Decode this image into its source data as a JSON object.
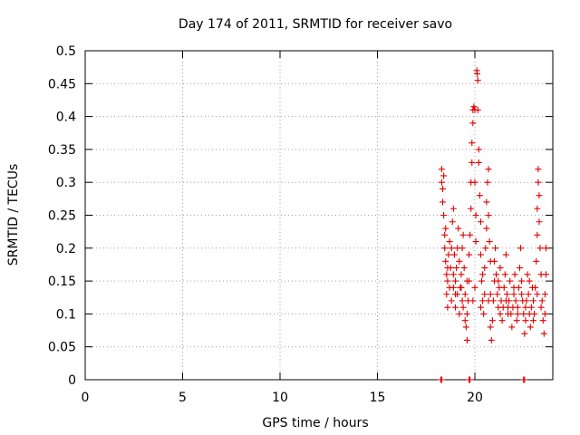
{
  "chart_data": {
    "type": "scatter",
    "title": "Day 174 of 2011, SRMTID for receiver savo",
    "xlabel": "GPS time / hours",
    "ylabel": "SRMTID / TECUs",
    "xlim": [
      0,
      24
    ],
    "ylim": [
      0,
      0.5
    ],
    "x_ticks": [
      0,
      5,
      10,
      15,
      20
    ],
    "x_tick_labels": [
      "0",
      "5",
      "10",
      "15",
      "20"
    ],
    "y_ticks": [
      0,
      0.05,
      0.1,
      0.15,
      0.2,
      0.25,
      0.3,
      0.35,
      0.4,
      0.45,
      0.5
    ],
    "y_tick_labels": [
      "0",
      "0.05",
      "0.1",
      "0.15",
      "0.2",
      "0.25",
      "0.3",
      "0.35",
      "0.4",
      "0.45",
      "0.5"
    ],
    "grid": true,
    "legend": "none",
    "marker": "+",
    "series": [
      {
        "name": "SRMTID",
        "color": "#e00000",
        "points": [
          [
            18.3,
            0.32
          ],
          [
            18.3,
            0.3
          ],
          [
            18.35,
            0.29
          ],
          [
            18.35,
            0.27
          ],
          [
            18.4,
            0.31
          ],
          [
            18.4,
            0.25
          ],
          [
            18.45,
            0.22
          ],
          [
            18.45,
            0.2
          ],
          [
            18.5,
            0.23
          ],
          [
            18.5,
            0.18
          ],
          [
            18.55,
            0.16
          ],
          [
            18.55,
            0.13
          ],
          [
            18.6,
            0.15
          ],
          [
            18.6,
            0.11
          ],
          [
            18.65,
            0.19
          ],
          [
            18.7,
            0.21
          ],
          [
            18.7,
            0.14
          ],
          [
            18.75,
            0.17
          ],
          [
            18.8,
            0.2
          ],
          [
            18.8,
            0.12
          ],
          [
            18.85,
            0.24
          ],
          [
            18.9,
            0.26
          ],
          [
            18.9,
            0.16
          ],
          [
            18.95,
            0.19
          ],
          [
            19.0,
            0.15
          ],
          [
            19.0,
            0.11
          ],
          [
            19.05,
            0.17
          ],
          [
            19.1,
            0.2
          ],
          [
            19.1,
            0.13
          ],
          [
            19.15,
            0.23
          ],
          [
            19.2,
            0.18
          ],
          [
            19.2,
            0.1
          ],
          [
            19.25,
            0.14
          ],
          [
            19.3,
            0.16
          ],
          [
            19.35,
            0.12
          ],
          [
            19.35,
            0.2
          ],
          [
            19.4,
            0.22
          ],
          [
            19.45,
            0.17
          ],
          [
            19.5,
            0.13
          ],
          [
            19.5,
            0.09
          ],
          [
            19.55,
            0.08
          ],
          [
            19.6,
            0.06
          ],
          [
            19.6,
            0.1
          ],
          [
            19.65,
            0.12
          ],
          [
            19.7,
            0.15
          ],
          [
            19.7,
            0.19
          ],
          [
            19.75,
            0.22
          ],
          [
            19.8,
            0.26
          ],
          [
            19.8,
            0.3
          ],
          [
            19.85,
            0.33
          ],
          [
            19.85,
            0.36
          ],
          [
            19.9,
            0.39
          ],
          [
            19.9,
            0.41
          ],
          [
            19.95,
            0.415
          ],
          [
            20.0,
            0.41
          ],
          [
            20.0,
            0.3
          ],
          [
            20.05,
            0.25
          ],
          [
            20.05,
            0.21
          ],
          [
            20.1,
            0.47
          ],
          [
            20.12,
            0.465
          ],
          [
            20.15,
            0.455
          ],
          [
            20.15,
            0.41
          ],
          [
            20.2,
            0.35
          ],
          [
            20.2,
            0.33
          ],
          [
            20.25,
            0.28
          ],
          [
            20.3,
            0.24
          ],
          [
            20.3,
            0.19
          ],
          [
            20.35,
            0.15
          ],
          [
            20.4,
            0.12
          ],
          [
            20.45,
            0.1
          ],
          [
            20.5,
            0.13
          ],
          [
            20.5,
            0.17
          ],
          [
            20.55,
            0.2
          ],
          [
            20.6,
            0.23
          ],
          [
            20.6,
            0.27
          ],
          [
            20.65,
            0.3
          ],
          [
            20.7,
            0.32
          ],
          [
            20.7,
            0.25
          ],
          [
            20.75,
            0.21
          ],
          [
            20.8,
            0.18
          ],
          [
            20.8,
            0.08
          ],
          [
            20.85,
            0.06
          ],
          [
            20.9,
            0.09
          ],
          [
            20.95,
            0.12
          ],
          [
            21.0,
            0.15
          ],
          [
            21.0,
            0.18
          ],
          [
            21.05,
            0.2
          ],
          [
            21.1,
            0.16
          ],
          [
            21.15,
            0.13
          ],
          [
            21.2,
            0.11
          ],
          [
            21.25,
            0.14
          ],
          [
            21.3,
            0.17
          ],
          [
            21.35,
            0.12
          ],
          [
            21.4,
            0.09
          ],
          [
            21.45,
            0.11
          ],
          [
            21.5,
            0.14
          ],
          [
            21.55,
            0.16
          ],
          [
            21.6,
            0.19
          ],
          [
            21.65,
            0.13
          ],
          [
            21.7,
            0.1
          ],
          [
            21.75,
            0.12
          ],
          [
            21.8,
            0.15
          ],
          [
            21.85,
            0.1
          ],
          [
            21.9,
            0.08
          ],
          [
            21.95,
            0.11
          ],
          [
            22.0,
            0.13
          ],
          [
            22.05,
            0.16
          ],
          [
            22.1,
            0.12
          ],
          [
            22.15,
            0.09
          ],
          [
            22.2,
            0.11
          ],
          [
            22.25,
            0.14
          ],
          [
            22.3,
            0.17
          ],
          [
            22.35,
            0.2
          ],
          [
            22.4,
            0.15
          ],
          [
            22.45,
            0.12
          ],
          [
            22.5,
            0.1
          ],
          [
            22.55,
            0.07
          ],
          [
            22.6,
            0.09
          ],
          [
            22.65,
            0.12
          ],
          [
            22.7,
            0.16
          ],
          [
            22.75,
            0.13
          ],
          [
            22.8,
            0.1
          ],
          [
            22.85,
            0.08
          ],
          [
            22.9,
            0.11
          ],
          [
            22.95,
            0.14
          ],
          [
            23.0,
            0.12
          ],
          [
            23.05,
            0.1
          ],
          [
            23.1,
            0.14
          ],
          [
            23.15,
            0.18
          ],
          [
            23.2,
            0.22
          ],
          [
            23.2,
            0.26
          ],
          [
            23.25,
            0.3
          ],
          [
            23.25,
            0.32
          ],
          [
            23.3,
            0.28
          ],
          [
            23.3,
            0.24
          ],
          [
            23.35,
            0.2
          ],
          [
            23.4,
            0.16
          ],
          [
            23.45,
            0.12
          ],
          [
            23.5,
            0.09
          ],
          [
            23.55,
            0.07
          ],
          [
            23.6,
            0.1
          ],
          [
            23.6,
            0.13
          ],
          [
            23.65,
            0.16
          ],
          [
            23.65,
            0.2
          ],
          [
            18.25,
            0.0
          ],
          [
            18.3,
            0.0
          ],
          [
            19.7,
            0.0
          ],
          [
            19.75,
            0.0
          ],
          [
            22.5,
            0.0
          ],
          [
            22.55,
            0.0
          ],
          [
            19.0,
            0.13
          ],
          [
            19.3,
            0.14
          ],
          [
            19.6,
            0.15
          ],
          [
            20.0,
            0.14
          ],
          [
            20.4,
            0.16
          ],
          [
            20.8,
            0.13
          ],
          [
            21.2,
            0.15
          ],
          [
            21.6,
            0.12
          ],
          [
            22.0,
            0.14
          ],
          [
            22.4,
            0.13
          ],
          [
            22.8,
            0.15
          ],
          [
            23.2,
            0.13
          ],
          [
            18.6,
            0.17
          ],
          [
            18.9,
            0.14
          ],
          [
            19.4,
            0.11
          ],
          [
            19.9,
            0.12
          ],
          [
            20.3,
            0.11
          ],
          [
            20.7,
            0.12
          ],
          [
            21.3,
            0.1
          ],
          [
            21.7,
            0.11
          ],
          [
            22.2,
            0.1
          ],
          [
            22.6,
            0.11
          ],
          [
            23.0,
            0.09
          ],
          [
            23.4,
            0.11
          ]
        ]
      }
    ]
  }
}
